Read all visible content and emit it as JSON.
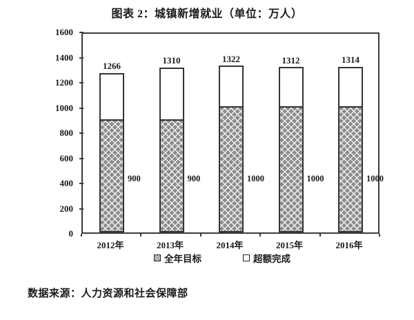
{
  "title": "图表 2：城镇新增就业（单位：万人）",
  "source_note": "数据来源：人力资源和社会保障部",
  "legend": {
    "items": [
      {
        "label": "全年目标",
        "swatch": "hatched"
      },
      {
        "label": "超额完成",
        "swatch": "white"
      }
    ]
  },
  "colors": {
    "hatch_gray": "#8c8c8c",
    "hatch_line": "#f5f5f5",
    "axis": "#3a3a3a",
    "text": "#1a1a1a",
    "excess_fill": "#ffffff"
  },
  "chart_data": {
    "type": "bar",
    "stacked": true,
    "title": "图表 2：城镇新增就业（单位：万人）",
    "categories": [
      "2012年",
      "2013年",
      "2014年",
      "2015年",
      "2016年"
    ],
    "series": [
      {
        "name": "全年目标",
        "style": "hatched",
        "values": [
          900,
          900,
          1000,
          1000,
          1000
        ]
      },
      {
        "name": "超额完成",
        "style": "white",
        "values": [
          366,
          410,
          322,
          312,
          314
        ]
      }
    ],
    "totals": [
      1266,
      1310,
      1322,
      1312,
      1314
    ],
    "total_labels": [
      "1266",
      "1310",
      "1322",
      "1312",
      "1314"
    ],
    "target_labels": [
      "900",
      "900",
      "1000",
      "1000",
      "1000"
    ],
    "ylim": [
      0,
      1600
    ],
    "yticks": [
      0,
      200,
      400,
      600,
      800,
      1000,
      1200,
      1400,
      1600
    ],
    "grid": false,
    "legend_position": "bottom",
    "unit": "万人"
  }
}
